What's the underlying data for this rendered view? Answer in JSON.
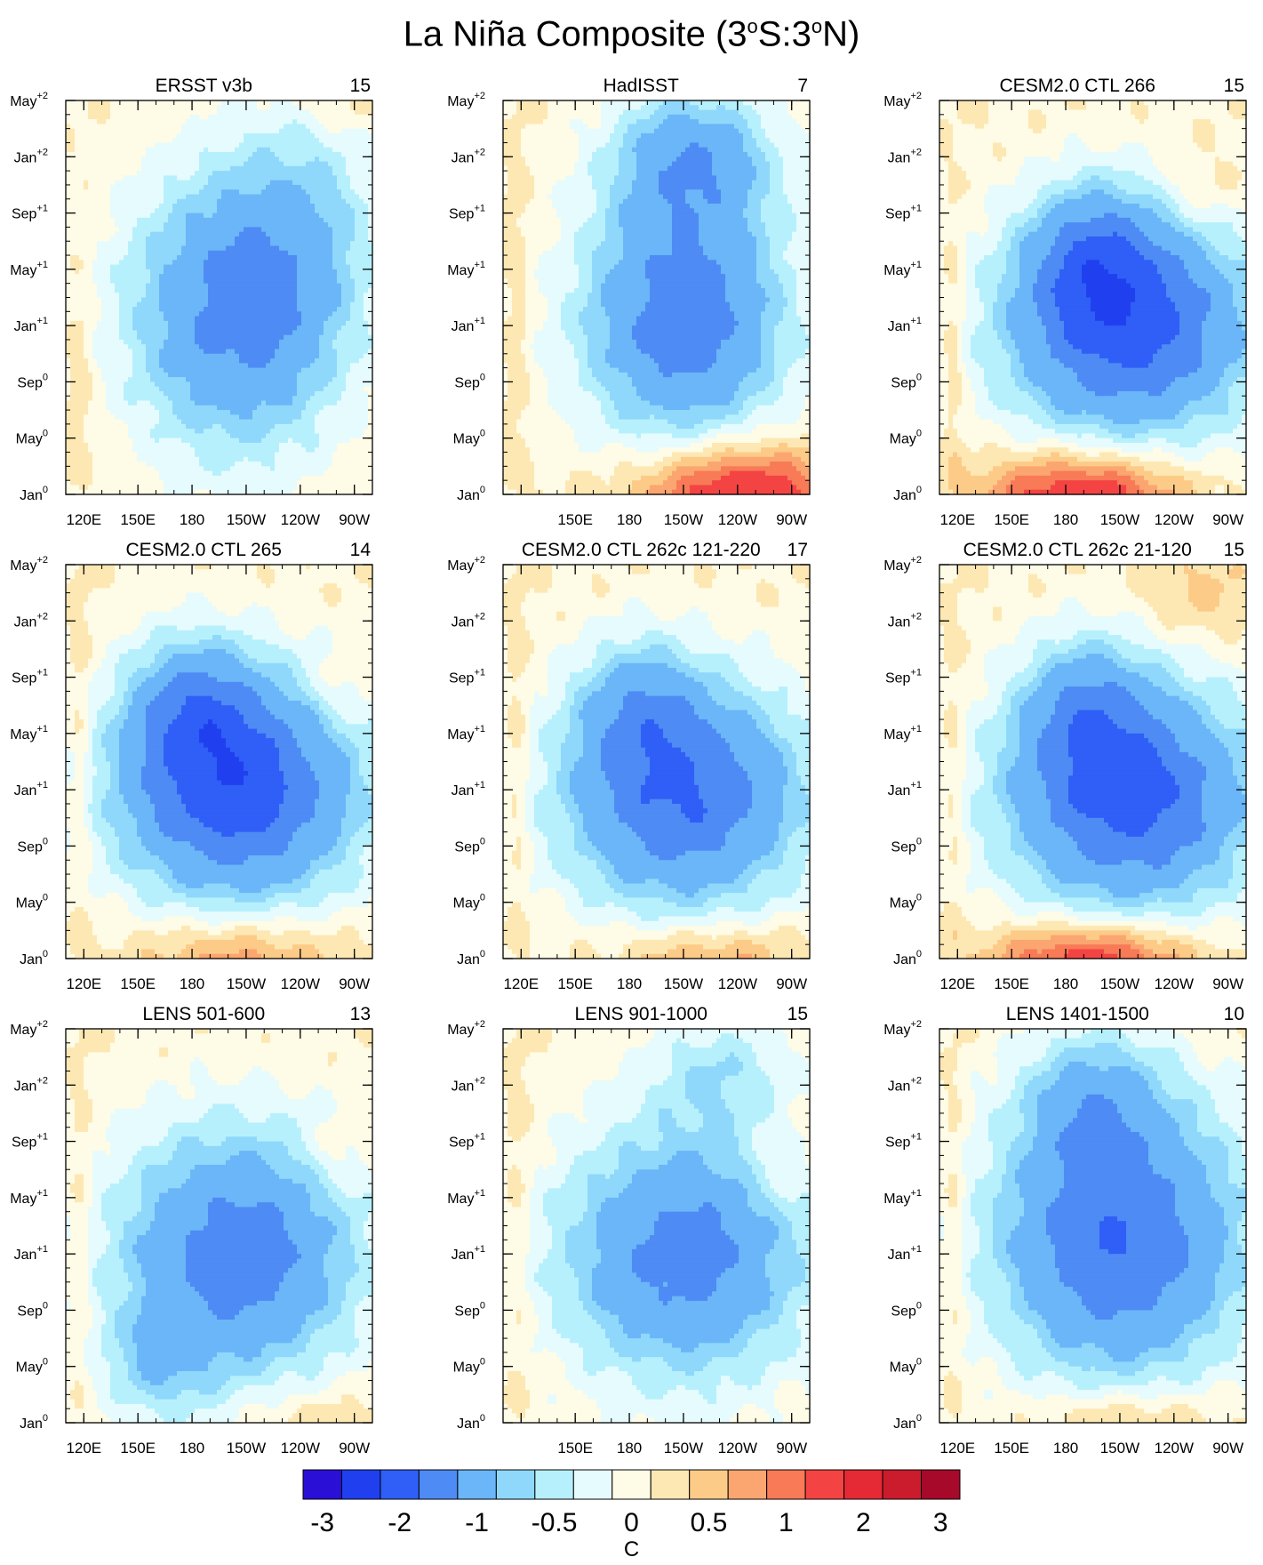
{
  "chart_data": {
    "type": "heatmap",
    "title_parts": [
      "La Niña Composite (3",
      "o",
      "S:3",
      "o",
      "N)"
    ],
    "xaxis": {
      "range": [
        110,
        280
      ],
      "ticks": [
        {
          "lon": 120,
          "label": "120E"
        },
        {
          "lon": 150,
          "label": "150E"
        },
        {
          "lon": 180,
          "label": "180"
        },
        {
          "lon": 210,
          "label": "150W"
        },
        {
          "lon": 240,
          "label": "120W"
        },
        {
          "lon": 270,
          "label": "90W"
        }
      ]
    },
    "yaxis": {
      "range_months": [
        0,
        28
      ],
      "ticks": [
        {
          "month": 0,
          "base": "Jan",
          "sup": "0"
        },
        {
          "month": 4,
          "base": "May",
          "sup": "0"
        },
        {
          "month": 8,
          "base": "Sep",
          "sup": "0"
        },
        {
          "month": 12,
          "base": "Jan",
          "sup": "+1"
        },
        {
          "month": 16,
          "base": "May",
          "sup": "+1"
        },
        {
          "month": 20,
          "base": "Sep",
          "sup": "+1"
        },
        {
          "month": 24,
          "base": "Jan",
          "sup": "+2"
        },
        {
          "month": 28,
          "base": "May",
          "sup": "+2"
        }
      ]
    },
    "colorbar": {
      "unit": "C",
      "levels": [
        -3,
        -2.5,
        -2,
        -1.5,
        -1,
        -0.75,
        -0.5,
        -0.25,
        0,
        0.25,
        0.5,
        0.75,
        1,
        1.5,
        2,
        2.5,
        3
      ],
      "labels": [
        {
          "value": -3,
          "text": "-3"
        },
        {
          "value": -2,
          "text": "-2"
        },
        {
          "value": -1,
          "text": "-1"
        },
        {
          "value": -0.5,
          "text": "-0.5"
        },
        {
          "value": 0,
          "text": "0"
        },
        {
          "value": 0.5,
          "text": "0.5"
        },
        {
          "value": 1,
          "text": "1"
        },
        {
          "value": 2,
          "text": "2"
        },
        {
          "value": 3,
          "text": "3"
        }
      ],
      "colors": [
        "#2a0fd6",
        "#2040f0",
        "#2f5ff6",
        "#4e8bf4",
        "#6ab6f8",
        "#8fd8fb",
        "#b7f0fd",
        "#e6fbfd",
        "#fefbe6",
        "#fde8b4",
        "#fdcb88",
        "#fba670",
        "#f87a57",
        "#f34443",
        "#e52a35",
        "#cb1c2d",
        "#a6092a"
      ]
    },
    "panels": [
      {
        "name": "ERSST v3b",
        "count": "15",
        "xlabels": true,
        "neg": [
          {
            "lon": 205,
            "m": 13.0,
            "rx": 60,
            "rm": 10.0,
            "amp": 1.7
          },
          {
            "lon": 245,
            "m": 20.0,
            "rx": 40,
            "rm": 8.0,
            "amp": 0.5
          }
        ],
        "pos": [
          {
            "lon": 118,
            "m": 9.0,
            "rx": 7,
            "rm": 7.0,
            "amp": 0.3
          },
          {
            "lon": 260,
            "m": 27.5,
            "rx": 22,
            "rm": 1.5,
            "amp": 0.25
          }
        ]
      },
      {
        "name": "HadISST",
        "count": "7",
        "xlabels": false,
        "neg": [
          {
            "lon": 210,
            "m": 12.5,
            "rx": 58,
            "rm": 9.0,
            "amp": 1.8
          },
          {
            "lon": 215,
            "m": 24.0,
            "rx": 45,
            "rm": 5.0,
            "amp": 1.2
          }
        ],
        "pos": [
          {
            "lon": 240,
            "m": 0.0,
            "rx": 55,
            "rm": 3.5,
            "amp": 1.6
          },
          {
            "lon": 118,
            "m": 13.0,
            "rx": 7,
            "rm": 12.0,
            "amp": 0.25
          }
        ]
      },
      {
        "name": "CESM2.0 CTL 266",
        "count": "15",
        "xlabels": true,
        "neg": [
          {
            "lon": 215,
            "m": 12.0,
            "rx": 70,
            "rm": 8.0,
            "amp": 2.2
          },
          {
            "lon": 195,
            "m": 17.0,
            "rx": 35,
            "rm": 5.0,
            "amp": 1.0
          }
        ],
        "pos": [
          {
            "lon": 190,
            "m": 0.0,
            "rx": 55,
            "rm": 3.0,
            "amp": 1.5
          },
          {
            "lon": 118,
            "m": 11.0,
            "rx": 6,
            "rm": 9.0,
            "amp": 0.35
          },
          {
            "lon": 255,
            "m": 21.5,
            "rx": 25,
            "rm": 3.0,
            "amp": 0.3
          }
        ]
      },
      {
        "name": "CESM2.0 CTL 265",
        "count": "14",
        "xlabels": true,
        "neg": [
          {
            "lon": 205,
            "m": 12.0,
            "rx": 68,
            "rm": 8.0,
            "amp": 2.3
          },
          {
            "lon": 180,
            "m": 18.0,
            "rx": 35,
            "rm": 5.0,
            "amp": 1.0
          }
        ],
        "pos": [
          {
            "lon": 205,
            "m": 0.0,
            "rx": 55,
            "rm": 3.0,
            "amp": 0.8
          },
          {
            "lon": 118,
            "m": 14.0,
            "rx": 6,
            "rm": 12.0,
            "amp": 0.3
          },
          {
            "lon": 262,
            "m": 19.0,
            "rx": 18,
            "rm": 2.5,
            "amp": 0.3
          }
        ]
      },
      {
        "name": "CESM2.0 CTL 262c 121-220",
        "count": "17",
        "xlabels": true,
        "neg": [
          {
            "lon": 210,
            "m": 11.5,
            "rx": 68,
            "rm": 8.0,
            "amp": 2.0
          },
          {
            "lon": 185,
            "m": 18.0,
            "rx": 35,
            "rm": 5.0,
            "amp": 0.8
          }
        ],
        "pos": [
          {
            "lon": 225,
            "m": 0.0,
            "rx": 55,
            "rm": 2.5,
            "amp": 0.7
          },
          {
            "lon": 118,
            "m": 13.0,
            "rx": 6,
            "rm": 12.0,
            "amp": 0.3
          }
        ]
      },
      {
        "name": "CESM2.0 CTL 262c 21-120",
        "count": "15",
        "xlabels": true,
        "neg": [
          {
            "lon": 215,
            "m": 11.5,
            "rx": 70,
            "rm": 8.0,
            "amp": 2.2
          },
          {
            "lon": 190,
            "m": 18.0,
            "rx": 35,
            "rm": 5.0,
            "amp": 0.9
          }
        ],
        "pos": [
          {
            "lon": 195,
            "m": 0.0,
            "rx": 55,
            "rm": 2.5,
            "amp": 1.4
          },
          {
            "lon": 118,
            "m": 12.0,
            "rx": 6,
            "rm": 10.0,
            "amp": 0.3
          },
          {
            "lon": 255,
            "m": 26.0,
            "rx": 32,
            "rm": 3.5,
            "amp": 0.35
          }
        ]
      },
      {
        "name": "LENS 501-600",
        "count": "13",
        "xlabels": true,
        "neg": [
          {
            "lon": 205,
            "m": 12.0,
            "rx": 68,
            "rm": 9.0,
            "amp": 1.8
          },
          {
            "lon": 160,
            "m": 4.0,
            "rx": 30,
            "rm": 4.0,
            "amp": 0.6
          }
        ],
        "pos": [
          {
            "lon": 245,
            "m": 0.0,
            "rx": 40,
            "rm": 2.5,
            "amp": 0.35
          },
          {
            "lon": 118,
            "m": 13.0,
            "rx": 6,
            "rm": 12.0,
            "amp": 0.25
          },
          {
            "lon": 260,
            "m": 19.0,
            "rx": 18,
            "rm": 2.5,
            "amp": 0.3
          }
        ]
      },
      {
        "name": "LENS 901-1000",
        "count": "15",
        "xlabels": false,
        "neg": [
          {
            "lon": 210,
            "m": 12.0,
            "rx": 70,
            "rm": 9.0,
            "amp": 1.7
          },
          {
            "lon": 230,
            "m": 25.0,
            "rx": 40,
            "rm": 4.0,
            "amp": 0.6
          }
        ],
        "pos": [
          {
            "lon": 118,
            "m": 14.0,
            "rx": 7,
            "rm": 13.0,
            "amp": 0.25
          },
          {
            "lon": 262,
            "m": 18.0,
            "rx": 18,
            "rm": 3.0,
            "amp": 0.3
          }
        ]
      },
      {
        "name": "LENS 1401-1500",
        "count": "10",
        "xlabels": true,
        "neg": [
          {
            "lon": 210,
            "m": 13.0,
            "rx": 70,
            "rm": 10.0,
            "amp": 2.0
          },
          {
            "lon": 195,
            "m": 23.0,
            "rx": 40,
            "rm": 5.0,
            "amp": 0.8
          }
        ],
        "pos": [
          {
            "lon": 215,
            "m": 0.0,
            "rx": 50,
            "rm": 2.5,
            "amp": 0.6
          },
          {
            "lon": 118,
            "m": 14.0,
            "rx": 6,
            "rm": 12.0,
            "amp": 0.3
          }
        ]
      }
    ]
  }
}
